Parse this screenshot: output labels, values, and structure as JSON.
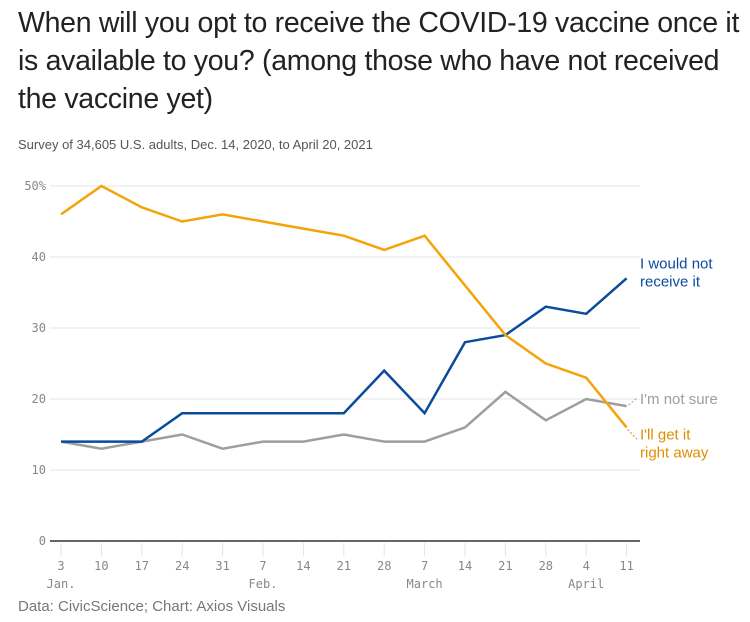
{
  "title": "When will you opt to receive the COVID-19 vaccine once it is available to you? (among those who have not received the vaccine yet)",
  "subtitle": "Survey of 34,605 U.S. adults, Dec. 14, 2020, to April 20, 2021",
  "footer": "Data: CivicScience; Chart: Axios Visuals",
  "chart_data": {
    "type": "line",
    "title": "When will you opt to receive the COVID-19 vaccine once it is available to you? (among those who have not received the vaccine yet)",
    "xlabel": "",
    "ylabel": "",
    "ylim": [
      0,
      50
    ],
    "grid": true,
    "y_ticks": [
      "0",
      "10",
      "20",
      "30",
      "40",
      "50%"
    ],
    "x_ticks": [
      "3",
      "10",
      "17",
      "24",
      "31",
      "7",
      "14",
      "21",
      "28",
      "7",
      "14",
      "21",
      "28",
      "4",
      "11"
    ],
    "x_month_labels": [
      {
        "index": 0,
        "label": "Jan."
      },
      {
        "index": 5,
        "label": "Feb."
      },
      {
        "index": 9,
        "label": "March"
      },
      {
        "index": 13,
        "label": "April"
      }
    ],
    "series": [
      {
        "name": "I would not receive it",
        "label_lines": [
          "I would not",
          "receive it"
        ],
        "color": "#0b4b9c",
        "values": [
          14,
          14,
          14,
          18,
          18,
          18,
          18,
          18,
          24,
          18,
          28,
          29,
          33,
          32,
          37
        ]
      },
      {
        "name": "I'm not sure",
        "label_lines": [
          "I'm not sure"
        ],
        "color": "#9e9e9e",
        "values": [
          14,
          13,
          14,
          15,
          13,
          14,
          14,
          15,
          14,
          14,
          16,
          21,
          17,
          20,
          19
        ]
      },
      {
        "name": "I'll get it right away",
        "label_lines": [
          "I'll get it",
          "right away"
        ],
        "color": "#f5a30a",
        "label_color": "#e08e00",
        "values": [
          46,
          50,
          47,
          45,
          46,
          45,
          44,
          43,
          41,
          43,
          36,
          29,
          25,
          23,
          16
        ]
      }
    ]
  }
}
